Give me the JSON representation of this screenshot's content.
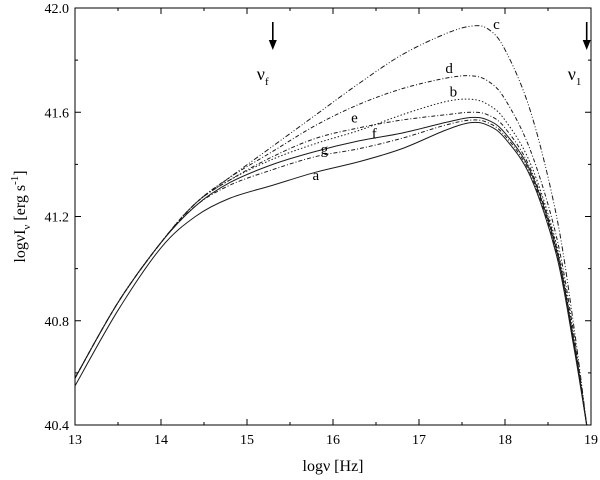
{
  "chart_data": {
    "type": "line",
    "xlabel": "logν [Hz]",
    "ylabel": {
      "main": "logνI",
      "sub": "ν",
      "unit": " [erg s",
      "exp": "-1",
      "close": "]"
    },
    "xlim": [
      13,
      19
    ],
    "ylim": [
      40.4,
      42.0
    ],
    "x_ticks": [
      13,
      14,
      15,
      16,
      17,
      18,
      19
    ],
    "x_tick_labels": [
      "13",
      "14",
      "15",
      "16",
      "17",
      "18",
      "19"
    ],
    "y_ticks": [
      40.4,
      40.8,
      41.2,
      41.6,
      42.0
    ],
    "y_tick_labels": [
      "40.4",
      "40.8",
      "41.2",
      "41.6",
      "42.0"
    ],
    "grid": false,
    "markers": [
      {
        "label": "ν",
        "sub": "f",
        "x": 15.3
      },
      {
        "label": "ν",
        "sub": "1",
        "x": 18.95
      }
    ],
    "series": [
      {
        "name": "a",
        "label_at": [
          15.8,
          41.34
        ],
        "style": "solid",
        "x": [
          13.0,
          13.5,
          14.0,
          14.4,
          14.8,
          15.3,
          15.8,
          16.3,
          16.8,
          17.3,
          17.6,
          17.8,
          18.0,
          18.3,
          18.6,
          18.8,
          18.95
        ],
        "y": [
          40.55,
          40.84,
          41.08,
          41.2,
          41.27,
          41.32,
          41.37,
          41.41,
          41.46,
          41.53,
          41.56,
          41.55,
          41.5,
          41.35,
          41.05,
          40.7,
          40.4
        ]
      },
      {
        "name": "g",
        "label_at": [
          15.9,
          41.44
        ],
        "style": "dashdot",
        "x": [
          13.0,
          13.5,
          14.0,
          14.4,
          14.8,
          15.3,
          15.8,
          16.3,
          16.8,
          17.3,
          17.6,
          17.8,
          18.0,
          18.3,
          18.6,
          18.8,
          18.95
        ],
        "y": [
          40.58,
          40.87,
          41.1,
          41.24,
          41.32,
          41.38,
          41.43,
          41.46,
          41.5,
          41.55,
          41.57,
          41.56,
          41.51,
          41.36,
          41.06,
          40.71,
          40.4
        ]
      },
      {
        "name": "f",
        "label_at": [
          16.48,
          41.5
        ],
        "style": "solid",
        "x": [
          13.0,
          13.5,
          14.0,
          14.4,
          14.8,
          15.3,
          15.8,
          16.3,
          16.8,
          17.3,
          17.6,
          17.8,
          18.0,
          18.3,
          18.6,
          18.8,
          18.95
        ],
        "y": [
          40.58,
          40.87,
          41.1,
          41.24,
          41.33,
          41.4,
          41.45,
          41.49,
          41.52,
          41.56,
          41.58,
          41.57,
          41.52,
          41.37,
          41.07,
          40.72,
          40.4
        ]
      },
      {
        "name": "e",
        "label_at": [
          16.25,
          41.56
        ],
        "style": "dashdot",
        "x": [
          13.0,
          13.5,
          14.0,
          14.4,
          14.8,
          15.3,
          15.8,
          16.3,
          16.8,
          17.3,
          17.6,
          17.8,
          18.0,
          18.3,
          18.6,
          18.8,
          18.95
        ],
        "y": [
          40.58,
          40.87,
          41.1,
          41.25,
          41.34,
          41.43,
          41.5,
          41.54,
          41.57,
          41.59,
          41.6,
          41.59,
          41.54,
          41.38,
          41.08,
          40.72,
          40.4
        ]
      },
      {
        "name": "b",
        "label_at": [
          17.4,
          41.66
        ],
        "style": "dotted",
        "x": [
          13.0,
          13.5,
          14.0,
          14.4,
          14.8,
          15.3,
          15.8,
          16.3,
          16.8,
          17.3,
          17.6,
          17.8,
          18.0,
          18.3,
          18.6,
          18.8,
          18.95
        ],
        "y": [
          40.58,
          40.87,
          41.1,
          41.25,
          41.34,
          41.42,
          41.48,
          41.53,
          41.59,
          41.64,
          41.65,
          41.63,
          41.57,
          41.4,
          41.09,
          40.73,
          40.4
        ]
      },
      {
        "name": "d",
        "label_at": [
          17.35,
          41.75
        ],
        "style": "dashdot",
        "x": [
          13.0,
          13.5,
          14.0,
          14.4,
          14.8,
          15.3,
          15.8,
          16.3,
          16.8,
          17.3,
          17.6,
          17.8,
          18.0,
          18.3,
          18.6,
          18.8,
          18.95
        ],
        "y": [
          40.58,
          40.87,
          41.1,
          41.25,
          41.35,
          41.45,
          41.55,
          41.63,
          41.69,
          41.73,
          41.74,
          41.72,
          41.65,
          41.45,
          41.12,
          40.75,
          40.4
        ]
      },
      {
        "name": "c",
        "label_at": [
          17.9,
          41.92
        ],
        "style": "dashdotdot",
        "x": [
          13.0,
          13.5,
          14.0,
          14.4,
          14.8,
          15.3,
          15.8,
          16.3,
          16.8,
          17.3,
          17.6,
          17.8,
          18.0,
          18.3,
          18.6,
          18.8,
          18.95
        ],
        "y": [
          40.58,
          40.87,
          41.1,
          41.25,
          41.35,
          41.47,
          41.59,
          41.71,
          41.82,
          41.9,
          41.93,
          41.92,
          41.84,
          41.6,
          41.2,
          40.78,
          40.4
        ]
      }
    ]
  }
}
